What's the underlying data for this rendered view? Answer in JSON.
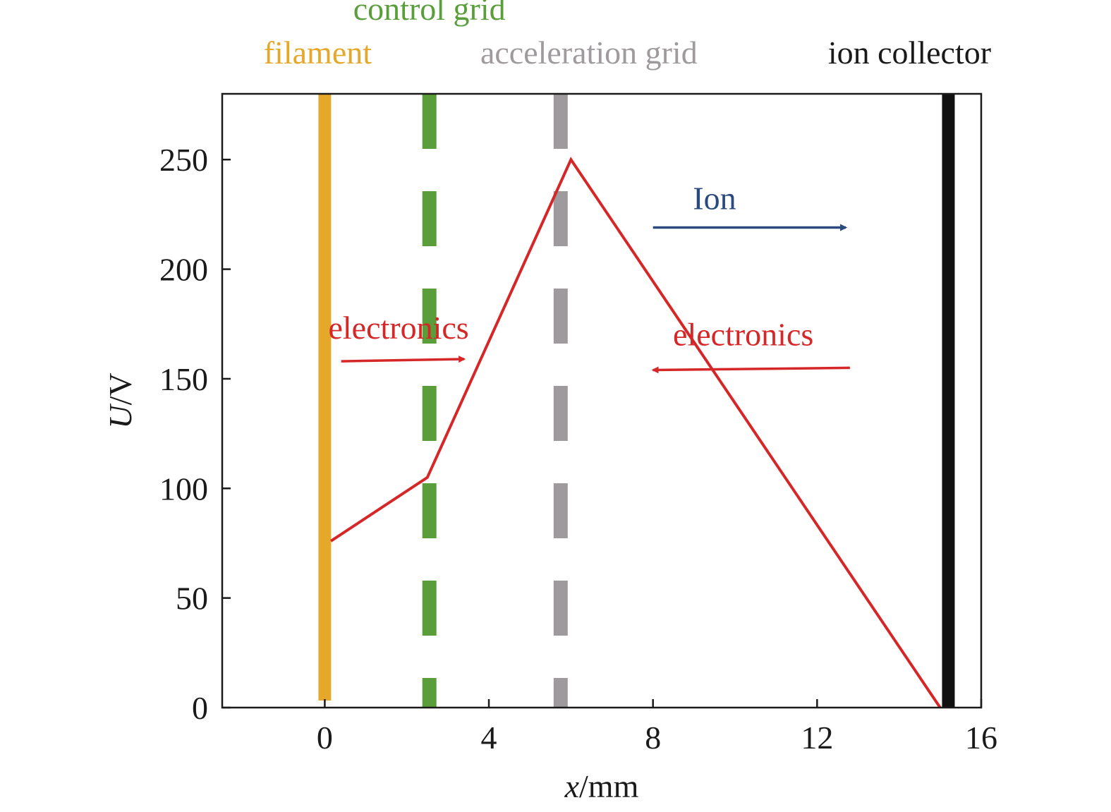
{
  "chart_data": {
    "type": "line",
    "xlabel": {
      "italic": "x",
      "rest": "/mm"
    },
    "ylabel": {
      "italic": "U",
      "rest": "/V"
    },
    "xlim": [
      -2.5,
      16
    ],
    "ylim": [
      0,
      280
    ],
    "xticks": [
      0,
      4,
      8,
      12,
      16
    ],
    "xtick_labels": [
      "0",
      "4",
      "8",
      "12",
      "16"
    ],
    "yticks": [
      0,
      50,
      100,
      150,
      200,
      250
    ],
    "ytick_labels": [
      "0",
      "50",
      "100",
      "150",
      "200",
      "250"
    ],
    "grid": false,
    "series": [
      {
        "color": "#d62728",
        "x": [
          0.15,
          2.5,
          6.0,
          15.0
        ],
        "y": [
          76,
          105,
          250,
          0
        ]
      }
    ],
    "electrodes": [
      {
        "label": "filament",
        "x": 0.0,
        "color": "#e5a82a",
        "style": "solid"
      },
      {
        "label": "control grid",
        "x": 2.55,
        "color": "#5a9e3a",
        "style": "dashed"
      },
      {
        "label": "acceleration grid",
        "x": 5.75,
        "color": "#9e9a9e",
        "style": "dashed"
      },
      {
        "label": "ion collector",
        "x": 15.2,
        "color": "#111111",
        "style": "solid"
      }
    ],
    "annotations": [
      {
        "text": "electronics",
        "color": "#d62728",
        "direction": "right",
        "arrow_x": [
          0.4,
          3.4
        ],
        "arrow_y": [
          158,
          159
        ]
      },
      {
        "text": "electronics",
        "color": "#d62728",
        "direction": "left",
        "arrow_x": [
          12.8,
          8.0
        ],
        "arrow_y": [
          155,
          154
        ]
      },
      {
        "text": "Ion",
        "color": "#2a4a7f",
        "direction": "right",
        "arrow_x": [
          8.0,
          12.7
        ],
        "arrow_y": [
          219,
          219
        ]
      }
    ]
  }
}
